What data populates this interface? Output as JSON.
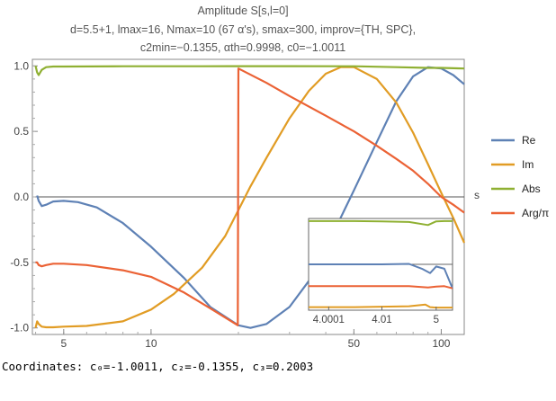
{
  "chart_data": {
    "type": "line",
    "title_lines": [
      "Amplitude S[s,l=0]",
      "d=5.5+1, lmax=16, Nmax=10 (67 α's), smax=300, improv={TH, SPC},",
      "c2min=−0.1355, αth=0.9998, c0=−1.0011"
    ],
    "xlabel": "s",
    "ylabel": "",
    "x_scale": "log",
    "xlim": [
      3.9,
      120
    ],
    "ylim": [
      -1.05,
      1.05
    ],
    "x_ticks": [
      5,
      10,
      50,
      100
    ],
    "y_ticks": [
      -1.0,
      -0.5,
      0.0,
      0.5,
      1.0
    ],
    "legend_position": "right",
    "series": [
      {
        "name": "Re",
        "color": "#5e81b5",
        "x": [
          4.05,
          4.1,
          4.2,
          4.35,
          4.6,
          5.0,
          5.6,
          6.5,
          8,
          10,
          13,
          16,
          20,
          22,
          25,
          30,
          35,
          40,
          45,
          50,
          60,
          70,
          80,
          90,
          100,
          110,
          120
        ],
        "y": [
          0.01,
          -0.03,
          -0.07,
          -0.06,
          -0.035,
          -0.03,
          -0.04,
          -0.08,
          -0.2,
          -0.38,
          -0.62,
          -0.84,
          -0.98,
          -1.0,
          -0.97,
          -0.84,
          -0.64,
          -0.4,
          -0.16,
          0.05,
          0.42,
          0.73,
          0.92,
          0.99,
          0.98,
          0.93,
          0.86
        ]
      },
      {
        "name": "Im",
        "color": "#e19c24",
        "x": [
          4.0,
          4.05,
          4.1,
          4.2,
          4.35,
          4.6,
          5.0,
          6,
          8,
          10,
          12,
          15,
          18,
          20,
          22,
          25,
          30,
          35,
          40,
          45,
          50,
          60,
          70,
          80,
          90,
          100,
          110,
          120
        ],
        "y": [
          -1.0,
          -0.95,
          -0.97,
          -0.99,
          -0.995,
          -0.995,
          -0.99,
          -0.985,
          -0.95,
          -0.86,
          -0.74,
          -0.54,
          -0.3,
          -0.1,
          0.08,
          0.3,
          0.6,
          0.81,
          0.94,
          0.99,
          0.99,
          0.9,
          0.72,
          0.49,
          0.25,
          0.03,
          -0.16,
          -0.35
        ]
      },
      {
        "name": "Abs",
        "color": "#8fb032",
        "x": [
          4.0,
          4.05,
          4.1,
          4.2,
          4.35,
          4.6,
          5.0,
          8,
          15,
          20,
          30,
          50,
          70,
          90,
          100,
          120
        ],
        "y": [
          1.0,
          0.95,
          0.93,
          0.97,
          0.99,
          0.995,
          0.995,
          0.997,
          0.997,
          0.998,
          0.998,
          0.997,
          0.99,
          0.985,
          0.985,
          0.98
        ]
      },
      {
        "name": "Arg/π",
        "color": "#eb6235",
        "x": [
          4.0,
          4.05,
          4.1,
          4.2,
          4.35,
          4.6,
          5.0,
          6,
          8,
          10,
          13,
          16,
          19.9,
          20.0,
          25,
          30,
          40,
          50,
          60,
          70,
          80,
          90,
          100,
          110,
          120
        ],
        "y": [
          -0.5,
          -0.5,
          -0.52,
          -0.53,
          -0.52,
          -0.51,
          -0.51,
          -0.52,
          -0.56,
          -0.61,
          -0.73,
          -0.85,
          -0.98,
          0.98,
          0.87,
          0.77,
          0.62,
          0.5,
          0.39,
          0.29,
          0.2,
          0.1,
          0.0,
          -0.06,
          -0.12
        ]
      }
    ],
    "inset": {
      "x_scale": "log",
      "x_tick_labels": [
        "4.0001",
        "4.01",
        "5"
      ],
      "xlim": [
        4.00001,
        8
      ],
      "ylim": [
        -1.05,
        1.05
      ],
      "series": [
        {
          "name": "Abs",
          "color": "#8fb032",
          "x": [
            4.00001,
            4.0001,
            4.001,
            4.01,
            4.1,
            4.5,
            5,
            6,
            8
          ],
          "y": [
            0.99,
            0.99,
            0.99,
            0.985,
            0.97,
            0.9,
            0.985,
            0.99,
            0.99
          ]
        },
        {
          "name": "Re",
          "color": "#5e81b5",
          "x": [
            4.00001,
            4.0001,
            4.001,
            4.01,
            4.1,
            4.3,
            4.6,
            5,
            6,
            8
          ],
          "y": [
            0.0,
            0.0,
            0.0,
            0.0,
            0.01,
            -0.1,
            -0.2,
            -0.05,
            -0.1,
            -0.55
          ]
        },
        {
          "name": "Arg/π",
          "color": "#eb6235",
          "x": [
            4.00001,
            4.0001,
            4.001,
            4.01,
            4.1,
            4.5,
            5,
            6,
            8
          ],
          "y": [
            -0.5,
            -0.5,
            -0.5,
            -0.5,
            -0.5,
            -0.53,
            -0.51,
            -0.5,
            -0.55
          ]
        },
        {
          "name": "Im",
          "color": "#e19c24",
          "x": [
            4.00001,
            4.0001,
            4.001,
            4.01,
            4.1,
            4.4,
            4.6,
            5,
            6,
            8
          ],
          "y": [
            -0.98,
            -0.98,
            -0.98,
            -0.97,
            -0.96,
            -0.92,
            -0.98,
            -0.99,
            -0.99,
            -0.99
          ]
        }
      ]
    }
  },
  "coordinates_text": "Coordinates: c₀=-1.0011, c₂=-0.1355, c₃=0.2003"
}
